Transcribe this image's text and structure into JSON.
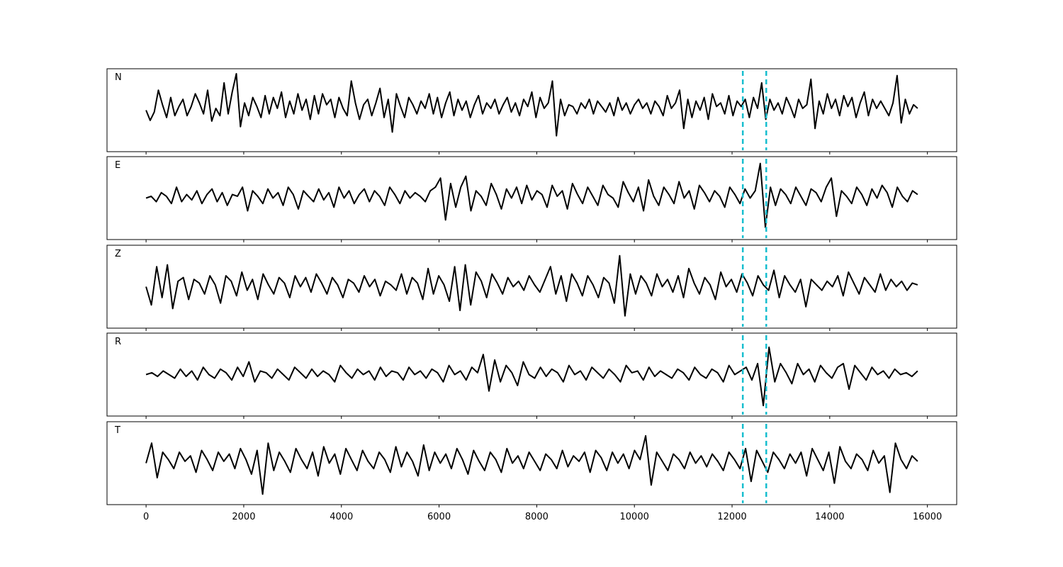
{
  "chart_data": {
    "type": "line",
    "title": "",
    "xlabel": "",
    "ylabel": "",
    "xlim": [
      -800,
      16600
    ],
    "x_ticks": [
      0,
      2000,
      4000,
      6000,
      8000,
      10000,
      12000,
      14000,
      16000
    ],
    "x_tick_labels": [
      "0",
      "2000",
      "4000",
      "6000",
      "8000",
      "10000",
      "12000",
      "14000",
      "16000"
    ],
    "x_range": [
      0,
      15800
    ],
    "grid": false,
    "trace_color": "#000000",
    "pick_color": "#17becf",
    "picks": [
      12220,
      12700
    ],
    "panels": [
      {
        "label": "N",
        "ylim": [
          -1.0,
          1.0
        ],
        "values": [
          0.0,
          -0.28,
          -0.05,
          0.55,
          0.15,
          -0.2,
          0.35,
          -0.15,
          0.1,
          0.3,
          -0.15,
          0.1,
          0.45,
          0.2,
          -0.1,
          0.55,
          -0.3,
          0.05,
          -0.15,
          0.75,
          -0.1,
          0.5,
          1.0,
          -0.45,
          0.2,
          -0.15,
          0.35,
          0.1,
          -0.2,
          0.4,
          -0.1,
          0.35,
          0.05,
          0.5,
          -0.2,
          0.25,
          -0.1,
          0.45,
          0.0,
          0.3,
          -0.25,
          0.4,
          -0.1,
          0.45,
          0.15,
          0.3,
          -0.2,
          0.35,
          0.05,
          -0.15,
          0.8,
          0.2,
          -0.25,
          0.15,
          0.3,
          -0.15,
          0.2,
          0.6,
          -0.2,
          0.3,
          -0.6,
          0.45,
          0.1,
          -0.2,
          0.35,
          0.15,
          -0.1,
          0.25,
          0.05,
          0.45,
          -0.1,
          0.35,
          -0.2,
          0.2,
          0.5,
          -0.15,
          0.3,
          0.0,
          0.25,
          -0.2,
          0.15,
          0.4,
          -0.1,
          0.2,
          0.05,
          0.3,
          -0.1,
          0.15,
          0.35,
          -0.05,
          0.2,
          -0.15,
          0.3,
          0.1,
          0.5,
          -0.2,
          0.35,
          0.05,
          0.2,
          0.8,
          -0.7,
          0.3,
          -0.15,
          0.15,
          0.1,
          -0.1,
          0.2,
          0.05,
          0.3,
          -0.1,
          0.25,
          0.1,
          -0.05,
          0.2,
          -0.15,
          0.35,
          0.0,
          0.2,
          -0.1,
          0.15,
          0.3,
          0.05,
          0.2,
          -0.1,
          0.25,
          0.1,
          -0.15,
          0.4,
          0.05,
          0.2,
          0.55,
          -0.5,
          0.3,
          -0.2,
          0.25,
          0.0,
          0.35,
          -0.25,
          0.45,
          0.1,
          0.2,
          -0.1,
          0.4,
          -0.15,
          0.25,
          0.1,
          0.3,
          -0.2,
          0.35,
          0.05,
          0.75,
          -0.25,
          0.3,
          0.0,
          0.2,
          -0.1,
          0.35,
          0.1,
          -0.2,
          0.3,
          0.05,
          0.15,
          0.85,
          -0.5,
          0.25,
          -0.1,
          0.45,
          0.05,
          0.3,
          -0.15,
          0.4,
          0.1,
          0.35,
          -0.2,
          0.2,
          0.5,
          -0.15,
          0.3,
          0.05,
          0.25,
          0.05,
          -0.15,
          0.2,
          0.95,
          -0.35,
          0.3,
          -0.1,
          0.15,
          0.05
        ],
        "values_b": []
      },
      {
        "label": "E",
        "ylim": [
          -1.0,
          1.0
        ],
        "values": [
          0.0,
          0.05,
          -0.1,
          0.15,
          0.05,
          -0.15,
          0.3,
          -0.1,
          0.1,
          -0.05,
          0.2,
          -0.15,
          0.1,
          0.25,
          -0.1,
          0.15,
          -0.2,
          0.1,
          0.05,
          0.3,
          -0.35,
          0.2,
          0.05,
          -0.15,
          0.25,
          0.0,
          0.15,
          -0.2,
          0.3,
          0.1,
          -0.3,
          0.2,
          0.05,
          -0.1,
          0.25,
          -0.05,
          0.15,
          -0.25,
          0.3,
          0.0,
          0.2,
          -0.15,
          0.1,
          0.25,
          -0.1,
          0.2,
          0.05,
          -0.2,
          0.3,
          0.1,
          -0.15,
          0.2,
          0.0,
          0.15,
          0.05,
          -0.1,
          0.2,
          0.3,
          0.55,
          -0.6,
          0.4,
          -0.25,
          0.3,
          0.6,
          -0.35,
          0.2,
          0.05,
          -0.2,
          0.4,
          0.1,
          -0.3,
          0.25,
          0.0,
          0.3,
          -0.15,
          0.35,
          -0.05,
          0.2,
          0.1,
          -0.25,
          0.35,
          0.05,
          0.2,
          -0.3,
          0.4,
          0.1,
          -0.15,
          0.3,
          0.05,
          -0.2,
          0.35,
          0.1,
          0.0,
          -0.25,
          0.45,
          0.15,
          -0.1,
          0.3,
          -0.35,
          0.5,
          0.05,
          -0.2,
          0.3,
          0.1,
          -0.15,
          0.45,
          0.0,
          0.2,
          -0.3,
          0.35,
          0.15,
          -0.1,
          0.2,
          0.05,
          -0.25,
          0.3,
          0.1,
          -0.15,
          0.25,
          0.0,
          0.2,
          0.95,
          -0.8,
          0.3,
          -0.2,
          0.25,
          0.1,
          -0.15,
          0.3,
          0.05,
          -0.2,
          0.25,
          0.15,
          -0.1,
          0.3,
          0.55,
          -0.5,
          0.2,
          0.05,
          -0.15,
          0.3,
          0.1,
          -0.2,
          0.25,
          0.0,
          0.35,
          0.15,
          -0.25,
          0.3,
          0.05,
          -0.1,
          0.2,
          0.1
        ],
        "values_b": []
      },
      {
        "label": "Z",
        "ylim": [
          -1.0,
          1.0
        ],
        "values": [
          0.0,
          -0.5,
          0.55,
          -0.3,
          0.6,
          -0.6,
          0.15,
          0.25,
          -0.35,
          0.2,
          0.1,
          -0.2,
          0.3,
          0.05,
          -0.45,
          0.3,
          0.15,
          -0.25,
          0.4,
          -0.1,
          0.2,
          -0.35,
          0.35,
          0.05,
          -0.2,
          0.25,
          0.1,
          -0.3,
          0.3,
          0.0,
          0.25,
          -0.15,
          0.35,
          0.1,
          -0.2,
          0.25,
          0.05,
          -0.3,
          0.2,
          0.1,
          -0.15,
          0.3,
          0.0,
          0.2,
          -0.25,
          0.15,
          0.05,
          -0.1,
          0.35,
          -0.2,
          0.25,
          0.1,
          -0.35,
          0.5,
          -0.2,
          0.3,
          0.05,
          -0.4,
          0.55,
          -0.65,
          0.6,
          -0.5,
          0.4,
          0.15,
          -0.3,
          0.35,
          0.1,
          -0.2,
          0.25,
          0.0,
          0.15,
          -0.1,
          0.3,
          0.05,
          -0.15,
          0.2,
          0.55,
          -0.2,
          0.3,
          -0.4,
          0.35,
          0.1,
          -0.25,
          0.3,
          0.05,
          -0.3,
          0.25,
          0.1,
          -0.45,
          0.85,
          -0.8,
          0.35,
          -0.2,
          0.3,
          0.1,
          -0.25,
          0.35,
          0.0,
          0.2,
          -0.15,
          0.3,
          -0.3,
          0.5,
          0.1,
          -0.2,
          0.25,
          0.05,
          -0.35,
          0.4,
          0.0,
          0.2,
          -0.15,
          0.35,
          0.1,
          -0.25,
          0.3,
          0.05,
          -0.1,
          0.45,
          -0.3,
          0.3,
          0.05,
          -0.15,
          0.2,
          -0.55,
          0.2,
          0.05,
          -0.1,
          0.15,
          0.0,
          0.3,
          -0.25,
          0.4,
          0.1,
          -0.2,
          0.25,
          0.05,
          -0.15,
          0.35,
          -0.1,
          0.2,
          0.0,
          0.15,
          -0.1,
          0.1,
          0.05
        ],
        "values_b": []
      },
      {
        "label": "R",
        "ylim": [
          -1.0,
          1.0
        ],
        "values": [
          0.0,
          0.05,
          -0.05,
          0.1,
          0.0,
          -0.1,
          0.15,
          -0.05,
          0.1,
          -0.15,
          0.2,
          0.0,
          -0.1,
          0.15,
          0.05,
          -0.15,
          0.2,
          -0.05,
          0.35,
          -0.2,
          0.1,
          0.05,
          -0.1,
          0.15,
          0.0,
          -0.15,
          0.2,
          0.05,
          -0.1,
          0.15,
          -0.05,
          0.1,
          0.0,
          -0.2,
          0.25,
          0.05,
          -0.1,
          0.15,
          0.0,
          0.1,
          -0.15,
          0.2,
          -0.05,
          0.1,
          0.05,
          -0.15,
          0.2,
          0.0,
          0.1,
          -0.1,
          0.15,
          0.05,
          -0.2,
          0.25,
          0.0,
          0.1,
          -0.15,
          0.2,
          0.05,
          0.55,
          -0.45,
          0.4,
          -0.2,
          0.25,
          0.05,
          -0.3,
          0.35,
          0.0,
          -0.1,
          0.2,
          -0.05,
          0.15,
          0.05,
          -0.2,
          0.25,
          0.0,
          0.1,
          -0.15,
          0.2,
          0.05,
          -0.1,
          0.15,
          0.0,
          -0.2,
          0.25,
          0.05,
          0.1,
          -0.15,
          0.2,
          -0.05,
          0.1,
          0.0,
          -0.1,
          0.15,
          0.05,
          -0.15,
          0.2,
          0.0,
          -0.1,
          0.15,
          0.05,
          -0.2,
          0.25,
          0.0,
          0.1,
          0.2,
          -0.15,
          0.3,
          -0.85,
          0.75,
          -0.2,
          0.3,
          0.05,
          -0.25,
          0.3,
          0.0,
          0.15,
          -0.2,
          0.25,
          0.05,
          -0.1,
          0.2,
          0.3,
          -0.4,
          0.25,
          0.05,
          -0.15,
          0.2,
          0.0,
          0.1,
          -0.1,
          0.15,
          0.0,
          0.05,
          -0.05,
          0.1
        ],
        "values_b": []
      },
      {
        "label": "T",
        "ylim": [
          -1.0,
          1.0
        ],
        "values": [
          0.0,
          0.55,
          -0.4,
          0.3,
          0.1,
          -0.15,
          0.3,
          0.05,
          0.2,
          -0.25,
          0.35,
          0.1,
          -0.2,
          0.3,
          0.05,
          0.25,
          -0.15,
          0.4,
          0.1,
          -0.3,
          0.35,
          -0.85,
          0.55,
          -0.2,
          0.3,
          0.05,
          -0.25,
          0.4,
          0.1,
          -0.15,
          0.3,
          -0.35,
          0.45,
          0.0,
          0.25,
          -0.3,
          0.4,
          0.1,
          -0.2,
          0.35,
          0.05,
          -0.15,
          0.3,
          0.1,
          -0.25,
          0.45,
          -0.1,
          0.3,
          0.05,
          -0.35,
          0.5,
          -0.2,
          0.3,
          0.0,
          0.25,
          -0.15,
          0.4,
          0.1,
          -0.3,
          0.35,
          0.05,
          -0.2,
          0.3,
          0.1,
          -0.25,
          0.4,
          0.0,
          0.2,
          -0.15,
          0.3,
          0.05,
          -0.2,
          0.25,
          0.1,
          -0.15,
          0.35,
          -0.1,
          0.2,
          0.05,
          0.3,
          -0.25,
          0.35,
          0.15,
          -0.2,
          0.3,
          0.0,
          0.25,
          -0.15,
          0.35,
          0.1,
          0.75,
          -0.6,
          0.3,
          0.05,
          -0.2,
          0.25,
          0.1,
          -0.15,
          0.3,
          0.0,
          0.2,
          -0.1,
          0.25,
          0.05,
          -0.2,
          0.3,
          0.1,
          -0.15,
          0.4,
          -0.5,
          0.35,
          0.05,
          -0.25,
          0.3,
          0.1,
          -0.15,
          0.25,
          0.0,
          0.3,
          -0.35,
          0.4,
          0.1,
          -0.2,
          0.3,
          -0.55,
          0.45,
          0.05,
          -0.15,
          0.25,
          0.1,
          -0.2,
          0.35,
          0.0,
          0.2,
          -0.8,
          0.55,
          0.1,
          -0.15,
          0.2,
          0.05
        ],
        "values_b": []
      }
    ]
  }
}
